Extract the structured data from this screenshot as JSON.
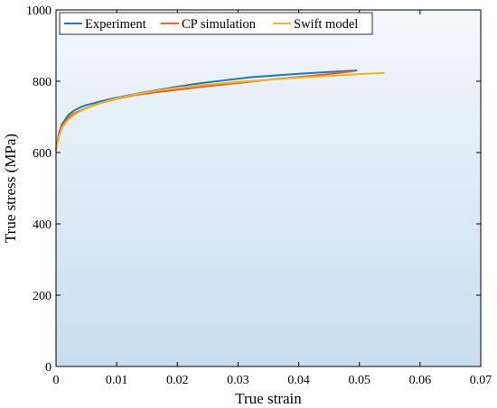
{
  "chart_data": {
    "type": "line",
    "xlabel": "True strain",
    "ylabel": "True stress (MPa)",
    "xlim": [
      0,
      0.07
    ],
    "ylim": [
      0,
      1000
    ],
    "xticks": [
      0,
      0.01,
      0.02,
      0.03,
      0.04,
      0.05,
      0.06,
      0.07
    ],
    "xtick_labels": [
      "0",
      "0.01",
      "0.02",
      "0.03",
      "0.04",
      "0.05",
      "0.06",
      "0.07"
    ],
    "yticks": [
      0,
      200,
      400,
      600,
      800,
      1000
    ],
    "ytick_labels": [
      "0",
      "200",
      "400",
      "600",
      "800",
      "1000"
    ],
    "grid": false,
    "legend_position": "top-left",
    "background": "light blue vertical gradient",
    "series": [
      {
        "name": "Experiment",
        "color": "#1f77b4",
        "x": [
          0,
          0.0005,
          0.001,
          0.002,
          0.003,
          0.004,
          0.005,
          0.007,
          0.01,
          0.013,
          0.016,
          0.02,
          0.024,
          0.028,
          0.032,
          0.036,
          0.04,
          0.044,
          0.047,
          0.0495
        ],
        "y": [
          608,
          655,
          680,
          705,
          718,
          727,
          733,
          742,
          754,
          764,
          773,
          785,
          795,
          803,
          811,
          816,
          821,
          825,
          828,
          830
        ]
      },
      {
        "name": "CP simulation",
        "color": "#e8612c",
        "x": [
          0,
          0.0005,
          0.001,
          0.002,
          0.003,
          0.004,
          0.005,
          0.007,
          0.01,
          0.013,
          0.016,
          0.02,
          0.025,
          0.03,
          0.035,
          0.04,
          0.045,
          0.049
        ],
        "y": [
          608,
          650,
          675,
          698,
          710,
          718,
          725,
          737,
          751,
          761,
          768,
          776,
          786,
          795,
          804,
          812,
          820,
          828
        ]
      },
      {
        "name": "Swift model",
        "color": "#f0b323",
        "x": [
          0,
          0.0005,
          0.001,
          0.002,
          0.003,
          0.004,
          0.005,
          0.007,
          0.01,
          0.013,
          0.016,
          0.02,
          0.025,
          0.03,
          0.035,
          0.04,
          0.045,
          0.05,
          0.054
        ],
        "y": [
          608,
          645,
          670,
          692,
          706,
          716,
          724,
          737,
          752,
          763,
          772,
          782,
          791,
          798,
          804,
          810,
          815,
          820,
          823
        ]
      }
    ]
  }
}
